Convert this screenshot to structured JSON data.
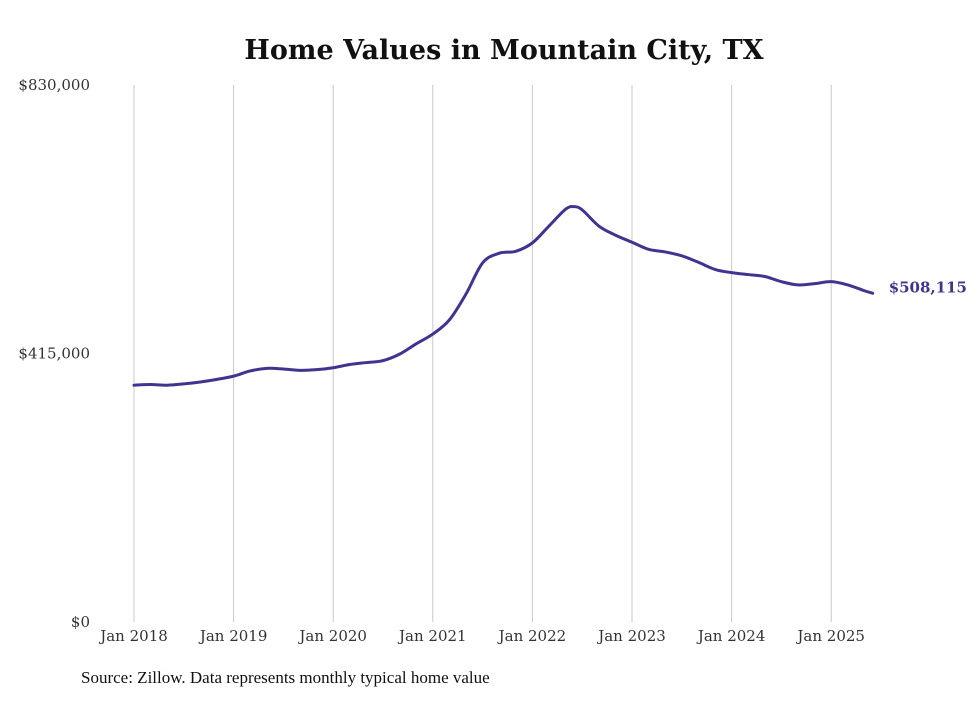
{
  "chart_data": {
    "type": "line",
    "title": "Home Values in Mountain City, TX",
    "xlabel": "",
    "ylabel": "",
    "ylim": [
      0,
      830000
    ],
    "y_ticks": [
      0,
      415000,
      830000
    ],
    "y_tick_labels": [
      "$0",
      "$415,000",
      "$830,000"
    ],
    "x_ticks": [
      "Jan 2018",
      "Jan 2019",
      "Jan 2020",
      "Jan 2021",
      "Jan 2022",
      "Jan 2023",
      "Jan 2024",
      "Jan 2025"
    ],
    "x_range": [
      "2018-01",
      "2025-06"
    ],
    "grid": "vertical",
    "end_label": "$508,115",
    "line_color": "#3f3590",
    "grid_color": "#c8c8c8",
    "series": [
      {
        "x": [
          "2018-01",
          "2018-03",
          "2018-05",
          "2018-07",
          "2018-09",
          "2018-11",
          "2019-01",
          "2019-03",
          "2019-05",
          "2019-07",
          "2019-09",
          "2019-11",
          "2020-01",
          "2020-03",
          "2020-05",
          "2020-07",
          "2020-09",
          "2020-11",
          "2021-01",
          "2021-03",
          "2021-05",
          "2021-07",
          "2021-09",
          "2021-11",
          "2022-01",
          "2022-03",
          "2022-05",
          "2022-06",
          "2022-07",
          "2022-09",
          "2022-11",
          "2023-01",
          "2023-03",
          "2023-05",
          "2023-07",
          "2023-09",
          "2023-11",
          "2024-01",
          "2024-03",
          "2024-05",
          "2024-07",
          "2024-09",
          "2024-11",
          "2025-01",
          "2025-03",
          "2025-05",
          "2025-06"
        ],
        "values": [
          366000,
          367000,
          366000,
          368000,
          371000,
          375000,
          380000,
          388000,
          392000,
          391000,
          389000,
          390000,
          393000,
          398000,
          401000,
          404000,
          414000,
          430000,
          445000,
          467000,
          507000,
          555000,
          570000,
          573000,
          586000,
          612000,
          638000,
          642000,
          637000,
          612000,
          598000,
          587000,
          576000,
          572000,
          566000,
          556000,
          545000,
          540000,
          537000,
          534000,
          526000,
          521000,
          523000,
          526000,
          521000,
          512000,
          508115
        ]
      }
    ]
  },
  "source": "Source: Zillow. Data represents monthly typical home value"
}
